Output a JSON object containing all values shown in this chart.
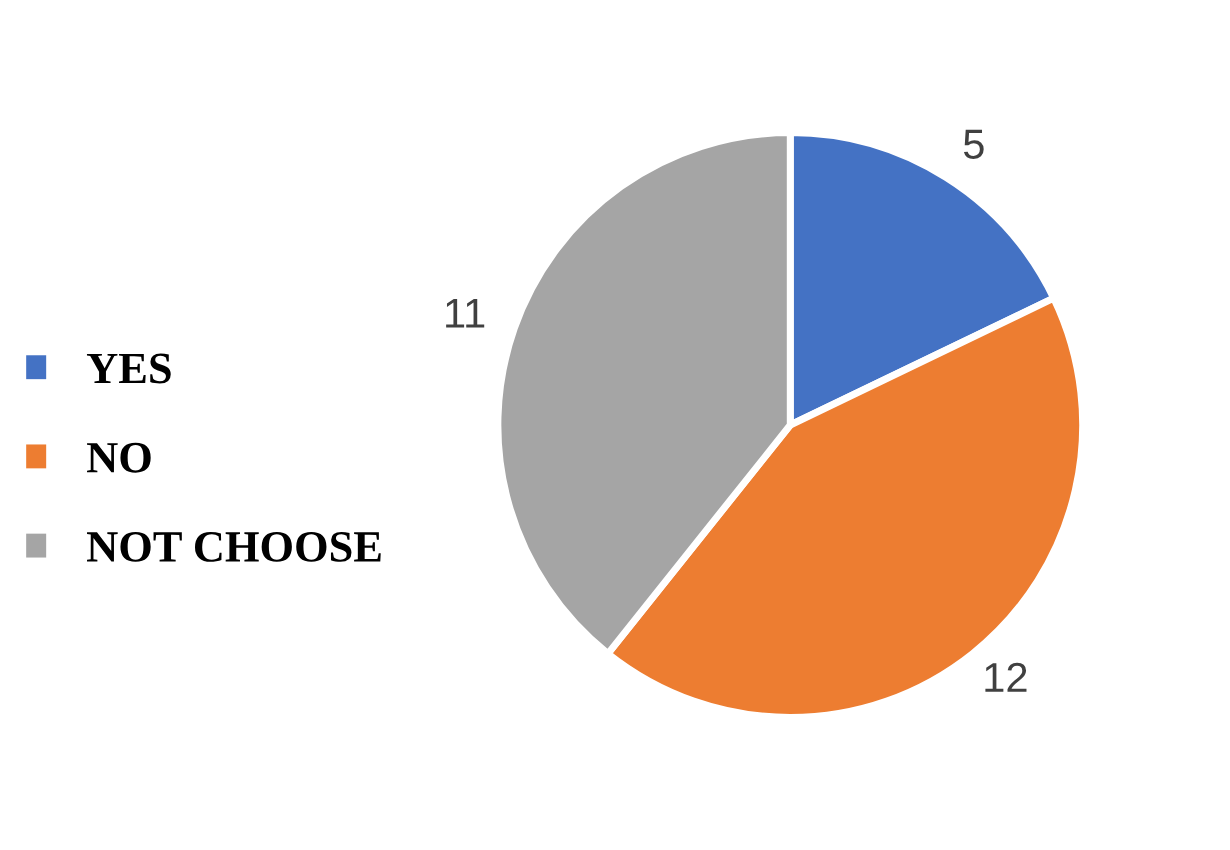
{
  "chart_data": {
    "type": "pie",
    "categories": [
      "YES",
      "NO",
      "NOT CHOOSE"
    ],
    "values": [
      5,
      12,
      11
    ],
    "colors": [
      "#4472c4",
      "#ed7d31",
      "#a5a5a5"
    ],
    "data_labels": true,
    "legend": "left"
  }
}
